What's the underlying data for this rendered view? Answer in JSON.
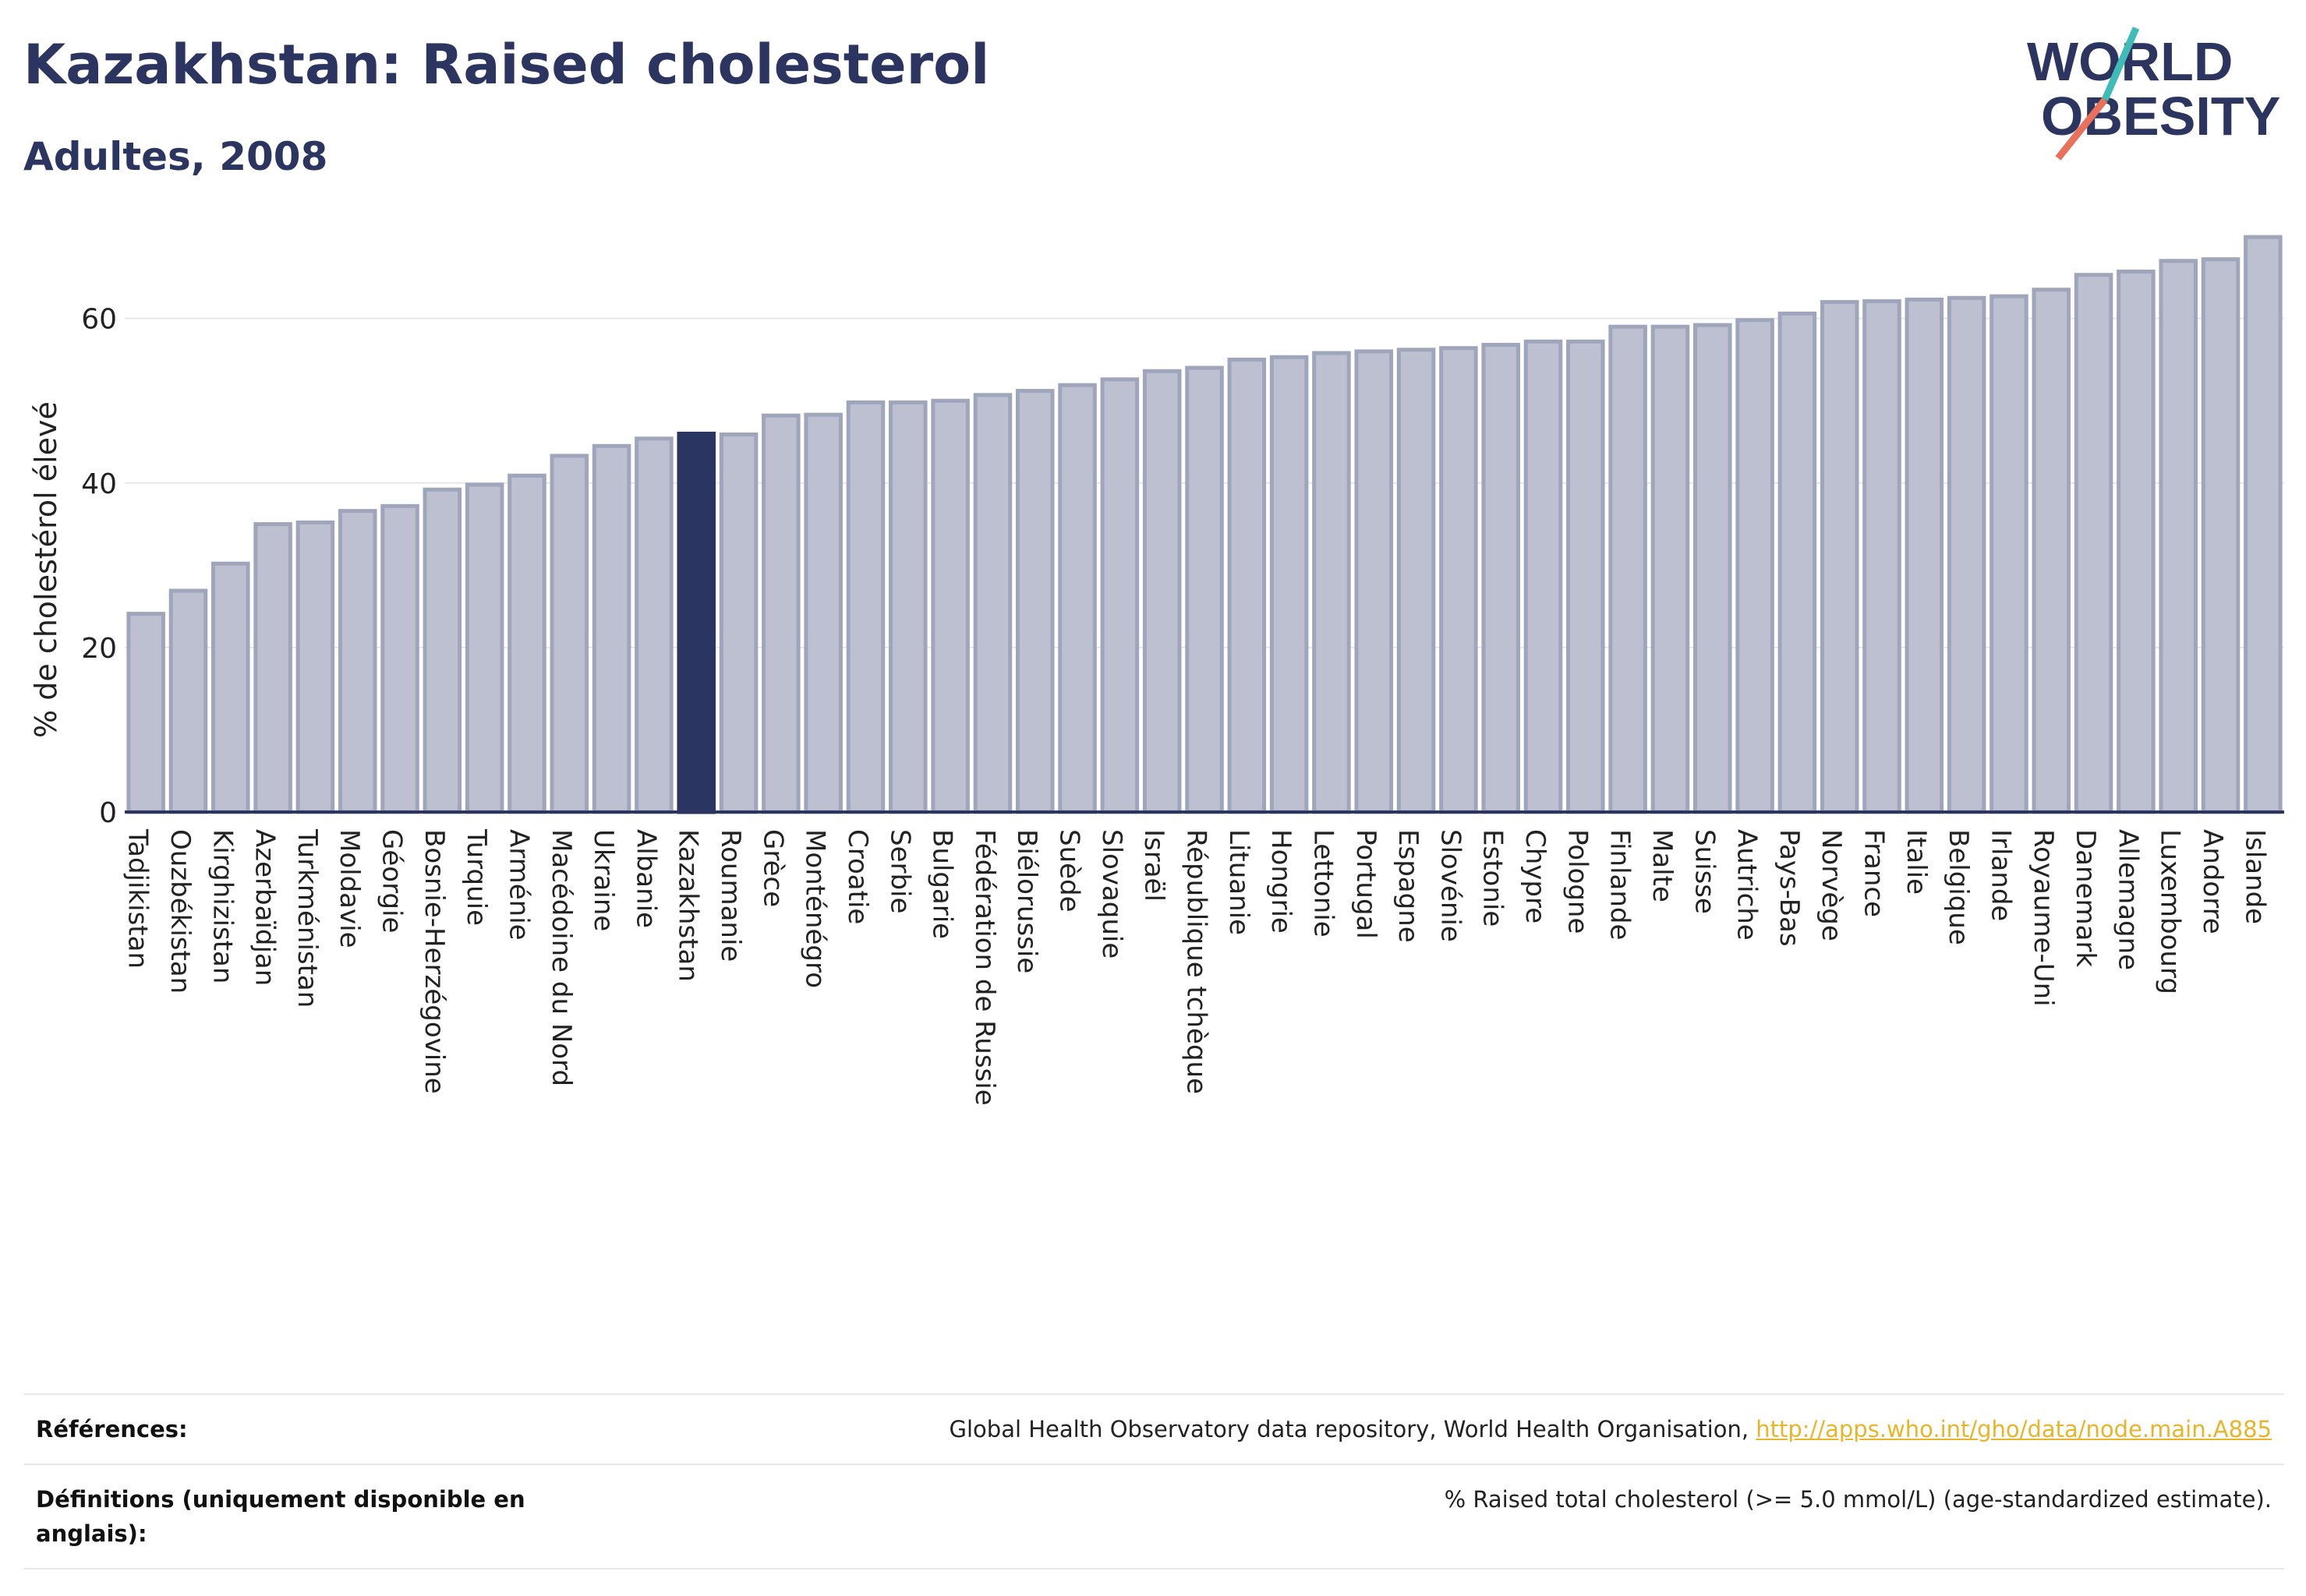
{
  "title": "Kazakhstan: Raised cholesterol",
  "subtitle": "Adultes, 2008",
  "logo": {
    "line1": "WORLD",
    "line2": "OBESITY"
  },
  "colors": {
    "bar": "#bcc0d0",
    "bar_edge": "#9fa5ba",
    "highlight": "#2b3561",
    "text": "#2b3560",
    "grid": "#e6e7ec",
    "link": "#e8b52a"
  },
  "chart_data": {
    "type": "bar",
    "ylabel": "% de cholestérol élevé",
    "ylim": [
      0,
      72
    ],
    "yticks": [
      0,
      20,
      40,
      60
    ],
    "grid": true,
    "highlight": "Kazakhstan",
    "categories": [
      "Tadjikistan",
      "Ouzbékistan",
      "Kirghizistan",
      "Azerbaïdjan",
      "Turkménistan",
      "Moldavie",
      "Géorgie",
      "Bosnie-Herzégovine",
      "Turquie",
      "Arménie",
      "Macédoine du Nord",
      "Ukraine",
      "Albanie",
      "Kazakhstan",
      "Roumanie",
      "Grèce",
      "Monténégro",
      "Croatie",
      "Serbie",
      "Bulgarie",
      "Fédération de Russie",
      "Biélorussie",
      "Suède",
      "Slovaquie",
      "Israël",
      "République tchèque",
      "Lituanie",
      "Hongrie",
      "Lettonie",
      "Portugal",
      "Espagne",
      "Slovénie",
      "Estonie",
      "Chypre",
      "Pologne",
      "Finlande",
      "Malte",
      "Suisse",
      "Autriche",
      "Pays-Bas",
      "Norvège",
      "France",
      "Italie",
      "Belgique",
      "Irlande",
      "Royaume-Uni",
      "Danemark",
      "Allemagne",
      "Luxembourg",
      "Andorre",
      "Islande"
    ],
    "values": [
      24.1,
      26.9,
      30.2,
      35.0,
      35.2,
      36.6,
      37.2,
      39.2,
      39.8,
      40.9,
      43.3,
      44.5,
      45.4,
      46.0,
      45.9,
      48.2,
      48.3,
      49.8,
      49.8,
      50.0,
      50.7,
      51.2,
      51.9,
      52.6,
      53.6,
      54.0,
      55.0,
      55.3,
      55.8,
      56.0,
      56.2,
      56.4,
      56.8,
      57.2,
      57.2,
      59.0,
      59.0,
      59.2,
      59.8,
      60.6,
      62.0,
      62.1,
      62.3,
      62.5,
      62.7,
      63.5,
      65.3,
      65.7,
      67.0,
      67.2,
      69.9
    ]
  },
  "references": {
    "label": "Références:",
    "text": "Global Health Observatory data repository, World Health Organisation, ",
    "link": "http://apps.who.int/gho/data/node.main.A885"
  },
  "definitions": {
    "label": "Définitions (uniquement disponible en anglais):",
    "text": "% Raised total cholesterol (>= 5.0 mmol/L) (age-standardized estimate)."
  }
}
